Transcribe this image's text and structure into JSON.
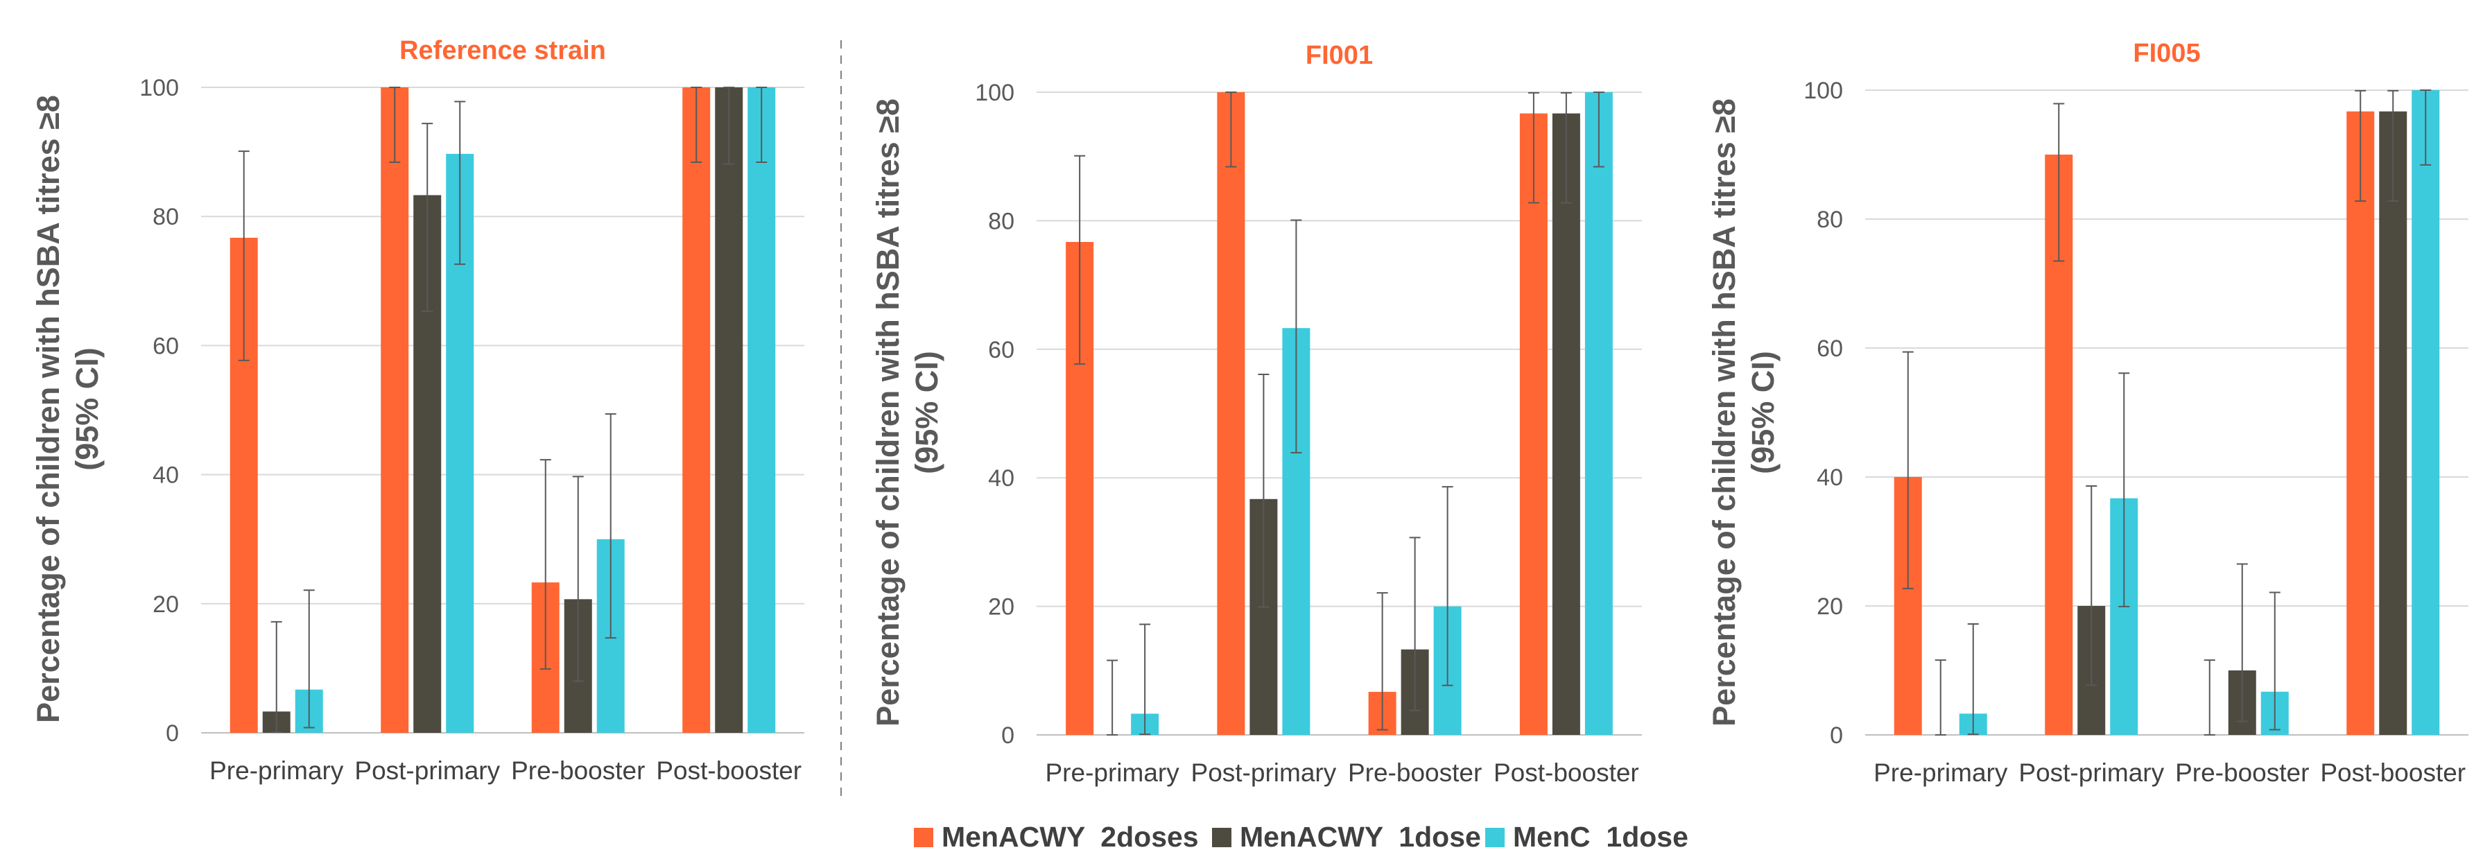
{
  "chart_data": [
    {
      "type": "bar",
      "title": "Reference strain",
      "ylabel": "Percentage of children with hSBA titres ≥8 (95% CI)",
      "ylim": [
        0,
        100
      ],
      "yticks": [
        0,
        20,
        40,
        60,
        80,
        100
      ],
      "categories": [
        "Pre-primary",
        "Post-primary",
        "Pre-booster",
        "Post-booster"
      ],
      "series": [
        {
          "name": "MenACWY  2doses",
          "values": [
            76.7,
            100,
            23.3,
            100
          ],
          "ci_low": [
            57.7,
            88.4,
            9.9,
            88.4
          ],
          "ci_high": [
            90.1,
            100,
            42.3,
            100
          ]
        },
        {
          "name": "MenACWY  1dose",
          "values": [
            3.3,
            83.3,
            20.7,
            100
          ],
          "ci_low": [
            0.1,
            65.3,
            8.0,
            88.1
          ],
          "ci_high": [
            17.2,
            94.4,
            39.7,
            100
          ]
        },
        {
          "name": "MenC  1dose",
          "values": [
            6.7,
            89.7,
            30.0,
            100
          ],
          "ci_low": [
            0.8,
            72.6,
            14.7,
            88.4
          ],
          "ci_high": [
            22.1,
            97.8,
            49.4,
            100
          ]
        }
      ]
    },
    {
      "type": "bar",
      "title": "FI001",
      "ylabel": "Percentage of children with hSBA titres ≥8 (95% CI)",
      "ylim": [
        0,
        100
      ],
      "yticks": [
        0,
        20,
        40,
        60,
        80,
        100
      ],
      "categories": [
        "Pre-primary",
        "Post-primary",
        "Pre-booster",
        "Post-booster"
      ],
      "series": [
        {
          "name": "MenACWY  2doses",
          "values": [
            76.7,
            100,
            6.7,
            96.7
          ],
          "ci_low": [
            57.7,
            88.4,
            0.8,
            82.8
          ],
          "ci_high": [
            90.1,
            100,
            22.1,
            99.9
          ]
        },
        {
          "name": "MenACWY  1dose",
          "values": [
            0,
            36.7,
            13.3,
            96.7
          ],
          "ci_low": [
            0,
            19.9,
            3.8,
            82.8
          ],
          "ci_high": [
            11.6,
            56.1,
            30.7,
            99.9
          ]
        },
        {
          "name": "MenC  1dose",
          "values": [
            3.3,
            63.3,
            20.0,
            100
          ],
          "ci_low": [
            0.1,
            43.9,
            7.7,
            88.4
          ],
          "ci_high": [
            17.2,
            80.1,
            38.6,
            100
          ]
        }
      ]
    },
    {
      "type": "bar",
      "title": "FI005",
      "ylabel": "Percentage of children with hSBA titres ≥8 (95% CI)",
      "ylim": [
        0,
        100
      ],
      "yticks": [
        0,
        20,
        40,
        60,
        80,
        100
      ],
      "categories": [
        "Pre-primary",
        "Post-primary",
        "Pre-booster",
        "Post-booster"
      ],
      "series": [
        {
          "name": "MenACWY  2doses",
          "values": [
            40.0,
            90.0,
            0,
            96.7
          ],
          "ci_low": [
            22.7,
            73.5,
            0,
            82.8
          ],
          "ci_high": [
            59.4,
            97.9,
            11.6,
            99.9
          ]
        },
        {
          "name": "MenACWY  1dose",
          "values": [
            0,
            20.0,
            10.0,
            96.7
          ],
          "ci_low": [
            0,
            7.7,
            2.1,
            82.8
          ],
          "ci_high": [
            11.6,
            38.6,
            26.5,
            99.9
          ]
        },
        {
          "name": "MenC  1dose",
          "values": [
            3.3,
            36.7,
            6.7,
            100
          ],
          "ci_low": [
            0.1,
            19.9,
            0.8,
            88.4
          ],
          "ci_high": [
            17.2,
            56.1,
            22.1,
            100
          ]
        }
      ]
    }
  ],
  "legend": [
    {
      "label": "MenACWY  2doses",
      "color": "#FF6633"
    },
    {
      "label": "MenACWY  1dose",
      "color": "#4D4A40"
    },
    {
      "label": "MenC  1dose",
      "color": "#3CCBDD"
    }
  ],
  "colors": {
    "series": [
      "#FF6633",
      "#4D4A40",
      "#3CCBDD"
    ],
    "title": "#FF6633",
    "grid": "#D9D9D9",
    "axis": "#BFBFBF",
    "errorbar": "#595959",
    "divider": "#808080"
  }
}
